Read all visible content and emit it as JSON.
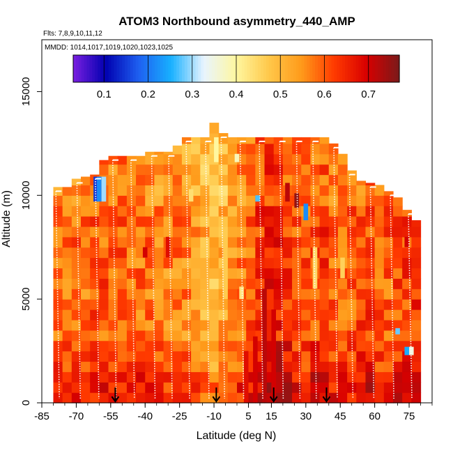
{
  "chart_data": {
    "type": "heatmap",
    "title": "ATOM3 Northbound asymmetry_440_AMP",
    "flights_label": "Flts: 7,8,9,10,11,12",
    "mmdd_label": "MMDD: 1014,1017,1019,1020,1023,1025",
    "xlabel": "Latitude (deg N)",
    "ylabel": "Altitude (m)",
    "xlim": [
      -85,
      85
    ],
    "ylim": [
      0,
      17500
    ],
    "x_ticks": [
      -85,
      -70,
      -55,
      -40,
      -25,
      -10,
      5,
      15,
      30,
      45,
      60,
      75
    ],
    "y_ticks": [
      0,
      5000,
      10000,
      15000
    ],
    "colorbar": {
      "range": [
        0.03,
        0.77
      ],
      "ticks": [
        0.1,
        0.2,
        0.3,
        0.4,
        0.5,
        0.6,
        0.7
      ],
      "colors": [
        "#7a1fe0",
        "#0000b0",
        "#1e5ff0",
        "#18b0ff",
        "#e8f4ff",
        "#fff7a0",
        "#ffc84a",
        "#ff9a1a",
        "#ff3a00",
        "#d80000",
        "#7a1a1a"
      ]
    },
    "markers_lat": [
      -53,
      -9,
      16,
      39
    ],
    "columns": [
      {
        "lat": -78,
        "top": 10400,
        "v": 0.58
      },
      {
        "lat": -74,
        "top": 10400,
        "v": 0.57
      },
      {
        "lat": -70,
        "top": 10800,
        "v": 0.59
      },
      {
        "lat": -66,
        "top": 10900,
        "v": 0.58
      },
      {
        "lat": -62,
        "top": 11000,
        "v": 0.6
      },
      {
        "lat": -58,
        "top": 11700,
        "v": 0.6
      },
      {
        "lat": -54,
        "top": 11900,
        "v": 0.59
      },
      {
        "lat": -50,
        "top": 11900,
        "v": 0.6
      },
      {
        "lat": -46,
        "top": 11900,
        "v": 0.59
      },
      {
        "lat": -42,
        "top": 11900,
        "v": 0.58
      },
      {
        "lat": -38,
        "top": 12100,
        "v": 0.58
      },
      {
        "lat": -34,
        "top": 12100,
        "v": 0.57
      },
      {
        "lat": -30,
        "top": 12100,
        "v": 0.56
      },
      {
        "lat": -26,
        "top": 12400,
        "v": 0.57
      },
      {
        "lat": -22,
        "top": 12800,
        "v": 0.56
      },
      {
        "lat": -18,
        "top": 12800,
        "v": 0.55
      },
      {
        "lat": -14,
        "top": 12800,
        "v": 0.52
      },
      {
        "lat": -10,
        "top": 13500,
        "v": 0.5
      },
      {
        "lat": -6,
        "top": 13000,
        "v": 0.52
      },
      {
        "lat": -2,
        "top": 12800,
        "v": 0.55
      },
      {
        "lat": 2,
        "top": 12800,
        "v": 0.58
      },
      {
        "lat": 6,
        "top": 12800,
        "v": 0.6
      },
      {
        "lat": 10,
        "top": 12800,
        "v": 0.63
      },
      {
        "lat": 14,
        "top": 12800,
        "v": 0.66
      },
      {
        "lat": 18,
        "top": 12800,
        "v": 0.65
      },
      {
        "lat": 22,
        "top": 12800,
        "v": 0.63
      },
      {
        "lat": 26,
        "top": 12800,
        "v": 0.6
      },
      {
        "lat": 30,
        "top": 12800,
        "v": 0.6
      },
      {
        "lat": 34,
        "top": 12800,
        "v": 0.62
      },
      {
        "lat": 38,
        "top": 12800,
        "v": 0.63
      },
      {
        "lat": 42,
        "top": 12500,
        "v": 0.6
      },
      {
        "lat": 46,
        "top": 12000,
        "v": 0.6
      },
      {
        "lat": 50,
        "top": 11200,
        "v": 0.6
      },
      {
        "lat": 54,
        "top": 10700,
        "v": 0.61
      },
      {
        "lat": 58,
        "top": 10600,
        "v": 0.62
      },
      {
        "lat": 62,
        "top": 10500,
        "v": 0.6
      },
      {
        "lat": 66,
        "top": 10200,
        "v": 0.6
      },
      {
        "lat": 70,
        "top": 9900,
        "v": 0.61
      },
      {
        "lat": 74,
        "top": 9300,
        "v": 0.62
      },
      {
        "lat": 78,
        "top": 8800,
        "v": 0.63
      }
    ],
    "patches": [
      {
        "lat": -61.5,
        "alt0": 9700,
        "alt1": 10900,
        "v": 0.15
      },
      {
        "lat": -60,
        "alt0": 9700,
        "alt1": 10900,
        "v": 0.22
      },
      {
        "lat": -58,
        "alt0": 9700,
        "alt1": 10900,
        "v": 0.3
      },
      {
        "lat": -9,
        "alt0": 11600,
        "alt1": 12800,
        "v": 0.4
      },
      {
        "lat": 0,
        "alt0": 11600,
        "alt1": 12000,
        "v": 0.38
      },
      {
        "lat": 9,
        "alt0": 9700,
        "alt1": 10000,
        "v": 0.27
      },
      {
        "lat": 30,
        "alt0": 8800,
        "alt1": 9600,
        "v": 0.22
      },
      {
        "lat": 70,
        "alt0": 3300,
        "alt1": 3600,
        "v": 0.28
      },
      {
        "lat": 74,
        "alt0": 2300,
        "alt1": 2700,
        "v": 0.25
      },
      {
        "lat": 76,
        "alt0": 2300,
        "alt1": 2700,
        "v": 0.35
      },
      {
        "lat": 26,
        "alt0": 9400,
        "alt1": 10100,
        "v": 0.75
      },
      {
        "lat": 22,
        "alt0": 9700,
        "alt1": 10600,
        "v": 0.72
      },
      {
        "lat": 12,
        "alt0": 0,
        "alt1": 5500,
        "v": 0.72
      },
      {
        "lat": 16,
        "alt0": 0,
        "alt1": 4500,
        "v": 0.7
      },
      {
        "lat": 8,
        "alt0": 0,
        "alt1": 3200,
        "v": 0.7
      },
      {
        "lat": 4,
        "alt0": 0,
        "alt1": 2500,
        "v": 0.68
      },
      {
        "lat": -30,
        "alt0": 7000,
        "alt1": 8000,
        "v": 0.68
      },
      {
        "lat": -40,
        "alt0": 7000,
        "alt1": 7500,
        "v": 0.7
      },
      {
        "lat": 74,
        "alt0": 7500,
        "alt1": 8000,
        "v": 0.7
      },
      {
        "lat": -20,
        "alt0": 9700,
        "alt1": 10300,
        "v": 0.44
      },
      {
        "lat": -5,
        "alt0": 5000,
        "alt1": 8000,
        "v": 0.47
      },
      {
        "lat": 34,
        "alt0": 5500,
        "alt1": 7500,
        "v": 0.45
      },
      {
        "lat": 46,
        "alt0": 6000,
        "alt1": 7000,
        "v": 0.46
      },
      {
        "lat": 2,
        "alt0": 5000,
        "alt1": 5600,
        "v": 0.43
      }
    ]
  }
}
